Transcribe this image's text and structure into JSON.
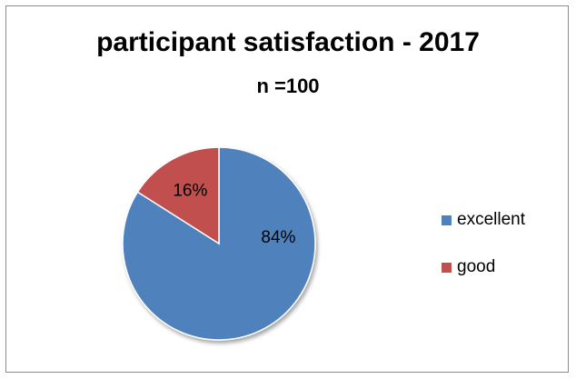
{
  "chart_data": {
    "type": "pie",
    "title": "participant satisfaction - 2017",
    "subtitle": "n =100",
    "categories": [
      "excellent",
      "good"
    ],
    "values": [
      84,
      16
    ],
    "data_labels": [
      "84%",
      "16%"
    ],
    "colors": [
      "#4f81bd",
      "#c0504d"
    ],
    "start": "12 o'clock",
    "direction": "clockwise",
    "legend_position": "right"
  }
}
